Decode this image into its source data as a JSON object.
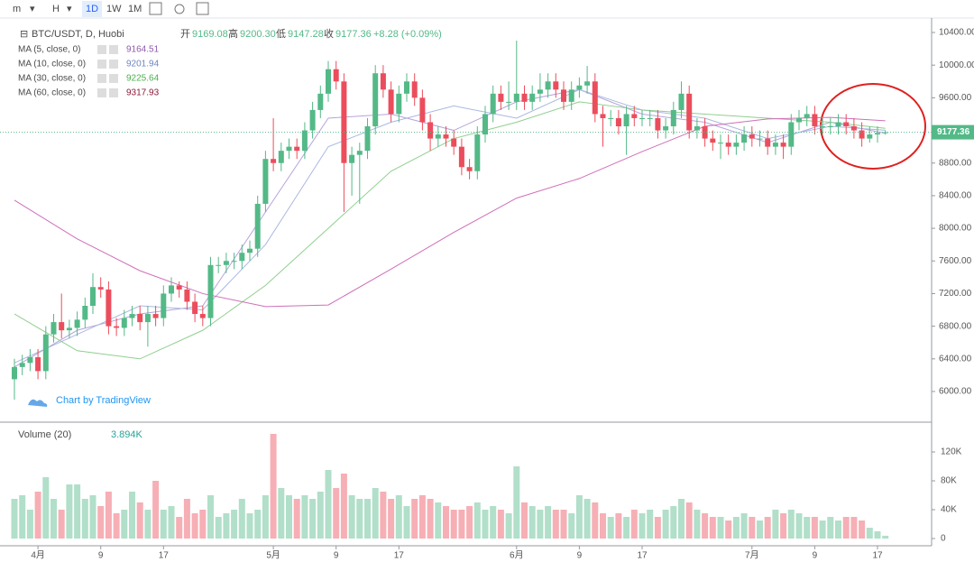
{
  "toolbar": [
    "m",
    "H",
    "1D",
    "1W",
    "1M"
  ],
  "chart_data": {
    "type": "candlestick",
    "title": "BTC/USDT, D, Huobi",
    "ohlc_names": [
      "开",
      "高",
      "低",
      "收"
    ],
    "last_labels": {
      "open": "9169.08",
      "high": "9200.30",
      "low": "9147.28",
      "close": "9177.36",
      "change": "+8.28 (+0.09%)"
    },
    "watermark": "Chart by TradingView",
    "up_color": "#53b987",
    "down_color": "#eb4d5c",
    "categories": [
      null,
      null,
      null,
      "4月",
      null,
      null,
      null,
      null,
      null,
      null,
      null,
      "9",
      null,
      null,
      null,
      null,
      null,
      null,
      null,
      "17",
      null,
      null,
      null,
      null,
      null,
      null,
      null,
      null,
      null,
      null,
      null,
      null,
      null,
      "5月",
      null,
      null,
      null,
      null,
      null,
      null,
      null,
      "9",
      null,
      null,
      null,
      null,
      null,
      null,
      null,
      "17",
      null,
      null,
      null,
      null,
      null,
      null,
      null,
      null,
      null,
      null,
      null,
      null,
      null,
      null,
      "6月",
      null,
      null,
      null,
      null,
      null,
      null,
      null,
      "9",
      null,
      null,
      null,
      null,
      null,
      null,
      null,
      "17",
      null,
      null,
      null,
      null,
      null,
      null,
      null,
      null,
      null,
      null,
      null,
      null,
      null,
      "7月",
      null,
      null,
      null,
      null,
      null,
      null,
      null,
      "9",
      null,
      null,
      null,
      null,
      null,
      null,
      null,
      "17",
      null
    ],
    "open": [
      6150,
      6300,
      6350,
      6420,
      6250,
      6700,
      6850,
      6750,
      6780,
      6880,
      7050,
      7280,
      7250,
      6800,
      6780,
      6900,
      6950,
      6850,
      6950,
      6900,
      7200,
      7300,
      7250,
      7100,
      6950,
      6900,
      7550,
      7550,
      7600,
      7600,
      7700,
      7750,
      8300,
      8850,
      8800,
      8950,
      9000,
      8950,
      9200,
      9450,
      9650,
      9950,
      9800,
      8800,
      8900,
      8950,
      9250,
      9900,
      9700,
      9400,
      9650,
      9800,
      9600,
      9300,
      9100,
      9150,
      9100,
      9000,
      8750,
      8700,
      9150,
      9400,
      9650,
      9550,
      9550,
      9650,
      9550,
      9650,
      9700,
      9800,
      9700,
      9550,
      9700,
      9750,
      9800,
      9400,
      9350,
      9350,
      9250,
      9400,
      9350,
      9350,
      9350,
      9200,
      9250,
      9450,
      9650,
      9200,
      9250,
      9100,
      9050,
      9050,
      9000,
      9050,
      9150,
      9100,
      9100,
      9000,
      9050,
      9000,
      9300,
      9350,
      9400,
      9250,
      9250,
      9250,
      9300,
      9250,
      9200,
      9100,
      9150,
      9169.08
    ],
    "high": [
      6400,
      6450,
      6520,
      6520,
      6800,
      6950,
      7200,
      6880,
      6980,
      7150,
      7450,
      7400,
      7350,
      6900,
      7000,
      7050,
      7050,
      7050,
      7050,
      7300,
      7400,
      7350,
      7350,
      7200,
      7050,
      7650,
      7650,
      7700,
      7700,
      7800,
      7850,
      8400,
      8950,
      9350,
      9050,
      9100,
      9100,
      9300,
      9550,
      9750,
      10050,
      10050,
      9900,
      9000,
      9050,
      9350,
      10000,
      10000,
      9800,
      9750,
      9900,
      9900,
      9700,
      9400,
      9250,
      9250,
      9200,
      9100,
      8850,
      9250,
      9500,
      9750,
      9750,
      9800,
      10300,
      9750,
      9750,
      9900,
      9900,
      9900,
      9800,
      9800,
      9850,
      9990,
      9900,
      9500,
      9450,
      9450,
      9500,
      9500,
      9450,
      9450,
      9450,
      9350,
      9550,
      9800,
      9750,
      9350,
      9350,
      9200,
      9150,
      9150,
      9150,
      9250,
      9250,
      9200,
      9200,
      9150,
      9150,
      9400,
      9450,
      9500,
      9500,
      9350,
      9350,
      9400,
      9400,
      9350,
      9300,
      9250,
      9250,
      9200.3
    ],
    "low": [
      5900,
      6200,
      6250,
      6150,
      6150,
      6600,
      6650,
      6650,
      6680,
      6780,
      6950,
      7150,
      6700,
      6680,
      6680,
      6800,
      6750,
      6550,
      6800,
      6800,
      7100,
      7150,
      7000,
      6850,
      6800,
      6800,
      7450,
      7450,
      7500,
      7500,
      7600,
      7650,
      8200,
      8700,
      8700,
      8850,
      8850,
      8850,
      9100,
      9350,
      9550,
      9700,
      8200,
      8400,
      8300,
      8850,
      9150,
      9600,
      9300,
      9300,
      9550,
      9500,
      9200,
      8950,
      9000,
      9000,
      8900,
      8650,
      8600,
      8600,
      9050,
      9300,
      9450,
      9450,
      9450,
      9450,
      9450,
      9550,
      9600,
      9600,
      9450,
      9450,
      9600,
      9650,
      9300,
      9000,
      9250,
      9150,
      8900,
      9250,
      9250,
      9250,
      9100,
      9100,
      9150,
      9350,
      9100,
      9100,
      9000,
      8950,
      8850,
      8900,
      8900,
      8950,
      9000,
      9000,
      8900,
      8900,
      8850,
      8900,
      9200,
      9250,
      9150,
      9150,
      9150,
      9150,
      9150,
      9100,
      9000,
      9050,
      9050,
      9147.28
    ],
    "close": [
      6300,
      6350,
      6420,
      6250,
      6700,
      6850,
      6750,
      6780,
      6880,
      7050,
      7280,
      7250,
      6800,
      6780,
      6900,
      6950,
      6850,
      6950,
      6900,
      7200,
      7300,
      7250,
      7100,
      6950,
      6900,
      7550,
      7550,
      7600,
      7600,
      7700,
      7750,
      8300,
      8850,
      8800,
      8950,
      9000,
      8950,
      9200,
      9450,
      9650,
      9950,
      9800,
      8800,
      8900,
      8950,
      9250,
      9900,
      9700,
      9400,
      9650,
      9800,
      9600,
      9300,
      9100,
      9150,
      9100,
      9000,
      8750,
      8700,
      9150,
      9400,
      9650,
      9550,
      9550,
      9650,
      9550,
      9650,
      9700,
      9800,
      9700,
      9550,
      9700,
      9750,
      9800,
      9400,
      9350,
      9350,
      9250,
      9400,
      9350,
      9350,
      9350,
      9200,
      9250,
      9450,
      9650,
      9200,
      9250,
      9100,
      9050,
      9050,
      9000,
      9050,
      9150,
      9100,
      9100,
      9000,
      9050,
      9000,
      9300,
      9350,
      9400,
      9250,
      9250,
      9250,
      9300,
      9250,
      9200,
      9100,
      9150,
      9169.08,
      9177.36
    ],
    "ylim": [
      5657,
      10577
    ],
    "yticks": [
      {
        "value": 6000,
        "label": "6000.00"
      },
      {
        "value": 6400,
        "label": "6400.00"
      },
      {
        "value": 6800,
        "label": "6800.00"
      },
      {
        "value": 7200,
        "label": "7200.00"
      },
      {
        "value": 7600,
        "label": "7600.00"
      },
      {
        "value": 8000,
        "label": "8000.00"
      },
      {
        "value": 8400,
        "label": "8400.00"
      },
      {
        "value": 8800,
        "label": "8800.00"
      },
      {
        "value": 9200,
        "label": "9200.00"
      },
      {
        "value": 9600,
        "label": "9600.00"
      },
      {
        "value": 10000,
        "label": "10000.00"
      },
      {
        "value": 10400,
        "label": "10400.00"
      }
    ],
    "series": [
      {
        "name": "MA (5, close, 0)",
        "color": "#b7a3dc",
        "text_color": "#8e5ba8",
        "x": [
          0,
          8,
          16,
          24,
          32,
          40,
          48,
          56,
          64,
          72,
          80,
          88,
          96,
          104,
          111
        ],
        "values": [
          6300,
          6750,
          6950,
          7050,
          8200,
          9350,
          9400,
          9200,
          9550,
          9700,
          9400,
          9300,
          9050,
          9300,
          9164.51
        ]
      },
      {
        "name": "MA (10, close, 0)",
        "color": "#a9b8e0",
        "text_color": "#6f86c0",
        "x": [
          0,
          8,
          16,
          24,
          32,
          40,
          48,
          56,
          64,
          72,
          80,
          88,
          96,
          104,
          111
        ],
        "values": [
          6350,
          6700,
          7050,
          7000,
          7800,
          9000,
          9300,
          9500,
          9350,
          9700,
          9450,
          9350,
          9100,
          9250,
          9201.94
        ]
      },
      {
        "name": "MA (30, close, 0)",
        "color": "#8fcf8f",
        "text_color": "#4caf50",
        "x": [
          0,
          8,
          16,
          24,
          32,
          40,
          48,
          56,
          64,
          72,
          80,
          88,
          96,
          104,
          111
        ],
        "values": [
          6950,
          6500,
          6400,
          6750,
          7300,
          8000,
          8700,
          9100,
          9300,
          9550,
          9450,
          9400,
          9350,
          9300,
          9225.64
        ]
      },
      {
        "name": "MA (60, close, 0)",
        "color": "#cf6fb8",
        "text_color": "#8b1a3a",
        "x": [
          0,
          8,
          16,
          24,
          32,
          40,
          48,
          56,
          64,
          72,
          80,
          88,
          96,
          104,
          111
        ],
        "values": [
          8344,
          7870,
          7480,
          7200,
          7040,
          7060,
          7500,
          7950,
          8370,
          8610,
          8940,
          9250,
          9340,
          9360,
          9317.93
        ]
      }
    ],
    "volume": {
      "name": "Volume (20)",
      "value_label": "3.894K",
      "values": [
        55000,
        60000,
        40000,
        65000,
        85000,
        55000,
        40000,
        75000,
        75000,
        55000,
        60000,
        45000,
        65000,
        35000,
        40000,
        65000,
        50000,
        40000,
        80000,
        40000,
        45000,
        30000,
        55000,
        35000,
        40000,
        60000,
        30000,
        35000,
        40000,
        55000,
        35000,
        40000,
        60000,
        145000,
        70000,
        60000,
        55000,
        60000,
        55000,
        65000,
        95000,
        70000,
        90000,
        60000,
        55000,
        55000,
        70000,
        65000,
        55000,
        60000,
        45000,
        55000,
        60000,
        55000,
        50000,
        45000,
        40000,
        40000,
        45000,
        50000,
        40000,
        45000,
        40000,
        35000,
        100000,
        50000,
        45000,
        40000,
        45000,
        40000,
        40000,
        35000,
        60000,
        55000,
        50000,
        35000,
        30000,
        35000,
        30000,
        40000,
        35000,
        40000,
        30000,
        40000,
        45000,
        55000,
        50000,
        40000,
        35000,
        30000,
        30000,
        25000,
        30000,
        35000,
        30000,
        25000,
        30000,
        40000,
        35000,
        40000,
        35000,
        30000,
        30000,
        25000,
        30000,
        25000,
        30000,
        30000,
        25000,
        15000,
        10000,
        3894
      ],
      "ylim": [
        -10000,
        156250
      ],
      "yticks": [
        0,
        {
          "value": 40000,
          "label": "40K"
        },
        {
          "value": 80000,
          "label": "80K"
        },
        {
          "value": 120000,
          "label": "120K"
        }
      ]
    }
  }
}
